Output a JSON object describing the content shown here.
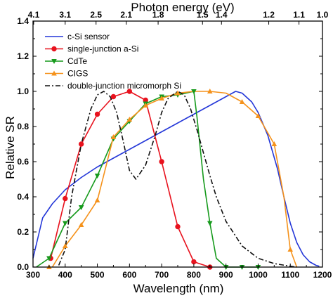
{
  "chart_data": {
    "type": "line",
    "xlabel": "Wavelength (nm)",
    "ylabel": "Relative SR",
    "top_axis_label": "Photon energy (eV)",
    "xlim": [
      300,
      1200
    ],
    "ylim": [
      0.0,
      1.4
    ],
    "x_ticks": [
      300,
      400,
      500,
      600,
      700,
      800,
      900,
      1000,
      1100,
      1200
    ],
    "y_ticks": [
      0.0,
      0.2,
      0.4,
      0.6,
      0.8,
      1.0,
      1.2,
      1.4
    ],
    "y_tick_labels": [
      "0.0",
      "0.2",
      "0.4",
      "0.6",
      "0.8",
      "1.0",
      "1.2",
      "1.4"
    ],
    "top_ticks": [
      {
        "label": "4.1",
        "wavelength": 302
      },
      {
        "label": "3.1",
        "wavelength": 400
      },
      {
        "label": "2.5",
        "wavelength": 496
      },
      {
        "label": "2.1",
        "wavelength": 590
      },
      {
        "label": "1.8",
        "wavelength": 689
      },
      {
        "label": "1.5",
        "wavelength": 827
      },
      {
        "label": "1.4",
        "wavelength": 886
      },
      {
        "label": "1.2",
        "wavelength": 1033
      },
      {
        "label": "1.1",
        "wavelength": 1127
      },
      {
        "label": "1.0",
        "wavelength": 1240
      }
    ],
    "grid": false,
    "legend_position": "top-left",
    "series": [
      {
        "name": "c-Si sensor",
        "color": "#2437d8",
        "dash": "solid",
        "marker": "none",
        "x": [
          300,
          330,
          360,
          400,
          450,
          500,
          550,
          600,
          650,
          700,
          750,
          800,
          850,
          900,
          920,
          930,
          950,
          980,
          1000,
          1030,
          1060,
          1080,
          1100,
          1120,
          1140,
          1160,
          1180,
          1190
        ],
        "y": [
          0.05,
          0.28,
          0.36,
          0.44,
          0.51,
          0.57,
          0.62,
          0.67,
          0.72,
          0.77,
          0.82,
          0.87,
          0.92,
          0.97,
          0.99,
          1.0,
          0.99,
          0.94,
          0.88,
          0.75,
          0.56,
          0.4,
          0.25,
          0.14,
          0.07,
          0.03,
          0.01,
          0.005
        ]
      },
      {
        "name": "single-junction a-Si",
        "color": "#e8121e",
        "dash": "solid",
        "marker": "circle",
        "x": [
          355,
          400,
          450,
          500,
          550,
          600,
          650,
          700,
          750,
          800,
          850
        ],
        "y": [
          0.05,
          0.39,
          0.7,
          0.87,
          0.97,
          1.0,
          0.95,
          0.6,
          0.23,
          0.03,
          0.0
        ],
        "marker_x": [
          355,
          400,
          450,
          500,
          550,
          600,
          650,
          700,
          750,
          800,
          850
        ]
      },
      {
        "name": "CdTe",
        "color": "#169a1c",
        "dash": "solid",
        "marker": "triangle-down",
        "x": [
          310,
          350,
          400,
          450,
          500,
          550,
          600,
          650,
          700,
          750,
          800,
          810,
          830,
          850,
          870,
          900,
          950,
          1000
        ],
        "y": [
          0.0,
          0.05,
          0.25,
          0.34,
          0.52,
          0.73,
          0.83,
          0.93,
          0.97,
          0.98,
          1.0,
          0.85,
          0.5,
          0.25,
          0.05,
          0.0,
          0.0,
          0.0
        ],
        "marker_x": [
          350,
          400,
          450,
          500,
          550,
          600,
          650,
          700,
          750,
          800,
          850,
          900,
          950,
          1000
        ]
      },
      {
        "name": "CIGS",
        "color": "#f5921b",
        "dash": "solid",
        "marker": "triangle-up",
        "x": [
          360,
          400,
          450,
          500,
          550,
          600,
          650,
          700,
          750,
          800,
          850,
          900,
          950,
          1000,
          1050,
          1080,
          1100,
          1120
        ],
        "y": [
          0.0,
          0.12,
          0.24,
          0.38,
          0.74,
          0.84,
          0.92,
          0.96,
          0.99,
          1.0,
          1.0,
          0.99,
          0.94,
          0.86,
          0.7,
          0.4,
          0.1,
          0.0
        ],
        "marker_x": [
          350,
          400,
          450,
          500,
          550,
          600,
          650,
          700,
          750,
          850,
          950,
          1000,
          1050,
          1100
        ]
      },
      {
        "name": "double-junction micromorph Si",
        "color": "#111111",
        "dash": "dashdot",
        "marker": "none",
        "x": [
          380,
          400,
          420,
          450,
          480,
          500,
          520,
          540,
          560,
          580,
          600,
          620,
          650,
          680,
          700,
          720,
          750,
          770,
          790,
          810,
          830,
          850,
          870,
          900,
          950,
          1000,
          1050,
          1100,
          1120
        ],
        "y": [
          0.01,
          0.1,
          0.4,
          0.7,
          0.9,
          0.98,
          1.0,
          0.97,
          0.88,
          0.72,
          0.55,
          0.5,
          0.58,
          0.75,
          0.88,
          0.96,
          1.0,
          0.98,
          0.9,
          0.78,
          0.65,
          0.52,
          0.4,
          0.26,
          0.12,
          0.05,
          0.02,
          0.005,
          0.0
        ]
      }
    ]
  }
}
